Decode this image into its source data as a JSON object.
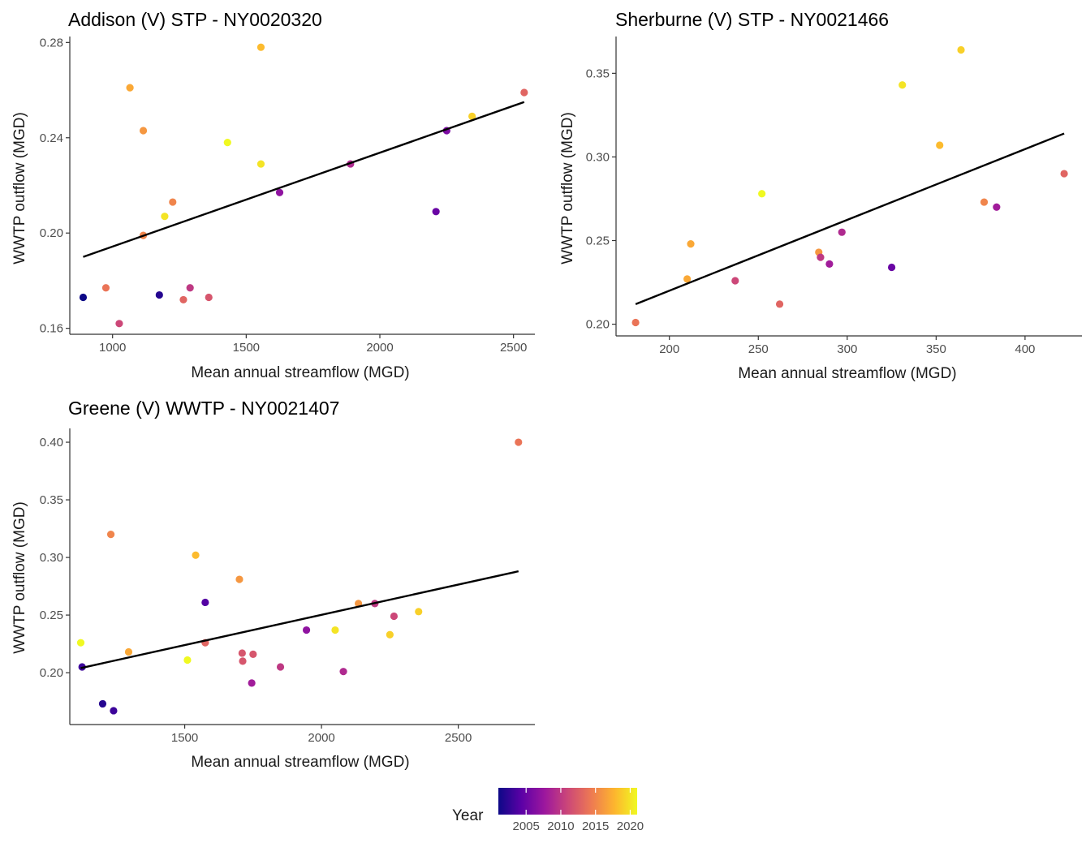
{
  "chart_data": [
    {
      "type": "scatter",
      "title": "Addison (V) STP - NY0020320",
      "xlabel": "Mean annual streamflow (MGD)",
      "ylabel": "WWTP outflow (MGD)",
      "xlim": [
        840,
        2580
      ],
      "ylim": [
        0.1575,
        0.2825
      ],
      "xticks": [
        1000,
        1500,
        2000,
        2500
      ],
      "xtick_labels": [
        "1000",
        "1500",
        "2000",
        "2500"
      ],
      "yticks": [
        0.16,
        0.2,
        0.24,
        0.28
      ],
      "ytick_labels": [
        "0.16",
        "0.20",
        "0.24",
        "0.28"
      ],
      "grid": false,
      "points": [
        {
          "x": 890,
          "y": 0.173,
          "year": 2001
        },
        {
          "x": 975,
          "y": 0.177,
          "year": 2014
        },
        {
          "x": 1025,
          "y": 0.162,
          "year": 2011
        },
        {
          "x": 1065,
          "y": 0.261,
          "year": 2017
        },
        {
          "x": 1115,
          "y": 0.243,
          "year": 2016
        },
        {
          "x": 1115,
          "y": 0.199,
          "year": 2015
        },
        {
          "x": 1175,
          "y": 0.174,
          "year": 2002
        },
        {
          "x": 1195,
          "y": 0.207,
          "year": 2020
        },
        {
          "x": 1225,
          "y": 0.213,
          "year": 2015
        },
        {
          "x": 1265,
          "y": 0.172,
          "year": 2013
        },
        {
          "x": 1290,
          "y": 0.177,
          "year": 2010
        },
        {
          "x": 1360,
          "y": 0.173,
          "year": 2012
        },
        {
          "x": 1430,
          "y": 0.238,
          "year": 2021
        },
        {
          "x": 1555,
          "y": 0.229,
          "year": 2020
        },
        {
          "x": 1555,
          "y": 0.278,
          "year": 2018
        },
        {
          "x": 1625,
          "y": 0.217,
          "year": 2007
        },
        {
          "x": 1890,
          "y": 0.229,
          "year": 2009
        },
        {
          "x": 2210,
          "y": 0.209,
          "year": 2005
        },
        {
          "x": 2250,
          "y": 0.243,
          "year": 2006
        },
        {
          "x": 2345,
          "y": 0.249,
          "year": 2019
        },
        {
          "x": 2540,
          "y": 0.259,
          "year": 2013
        }
      ],
      "trend_line": {
        "x": [
          890,
          2540
        ],
        "y": [
          0.19,
          0.255
        ]
      }
    },
    {
      "type": "scatter",
      "title": "Sherburne (V) STP - NY0021466",
      "xlabel": "Mean annual streamflow (MGD)",
      "ylabel": "WWTP outflow (MGD)",
      "xlim": [
        170,
        432
      ],
      "ylim": [
        0.193,
        0.372
      ],
      "xticks": [
        200,
        250,
        300,
        350,
        400
      ],
      "xtick_labels": [
        "200",
        "250",
        "300",
        "350",
        "400"
      ],
      "yticks": [
        0.2,
        0.25,
        0.3,
        0.35
      ],
      "ytick_labels": [
        "0.20",
        "0.25",
        "0.30",
        "0.35"
      ],
      "grid": false,
      "points": [
        {
          "x": 181,
          "y": 0.201,
          "year": 2014
        },
        {
          "x": 210,
          "y": 0.227,
          "year": 2017
        },
        {
          "x": 212,
          "y": 0.248,
          "year": 2017
        },
        {
          "x": 237,
          "y": 0.226,
          "year": 2011
        },
        {
          "x": 252,
          "y": 0.278,
          "year": 2021
        },
        {
          "x": 262,
          "y": 0.212,
          "year": 2013
        },
        {
          "x": 284,
          "y": 0.243,
          "year": 2016
        },
        {
          "x": 285,
          "y": 0.24,
          "year": 2010
        },
        {
          "x": 290,
          "y": 0.236,
          "year": 2008
        },
        {
          "x": 297,
          "y": 0.255,
          "year": 2009
        },
        {
          "x": 325,
          "y": 0.234,
          "year": 2005
        },
        {
          "x": 331,
          "y": 0.343,
          "year": 2020
        },
        {
          "x": 352,
          "y": 0.307,
          "year": 2018
        },
        {
          "x": 364,
          "y": 0.364,
          "year": 2019
        },
        {
          "x": 377,
          "y": 0.273,
          "year": 2015
        },
        {
          "x": 384,
          "y": 0.27,
          "year": 2008
        },
        {
          "x": 422,
          "y": 0.29,
          "year": 2013
        }
      ],
      "trend_line": {
        "x": [
          181,
          422
        ],
        "y": [
          0.212,
          0.314
        ]
      }
    },
    {
      "type": "scatter",
      "title": "Greene (V) WWTP - NY0021407",
      "xlabel": "Mean annual streamflow (MGD)",
      "ylabel": "WWTP outflow (MGD)",
      "xlim": [
        1080,
        2780
      ],
      "ylim": [
        0.155,
        0.412
      ],
      "xticks": [
        1500,
        2000,
        2500
      ],
      "xtick_labels": [
        "1500",
        "2000",
        "2500"
      ],
      "yticks": [
        0.2,
        0.25,
        0.3,
        0.35,
        0.4
      ],
      "ytick_labels": [
        "0.20",
        "0.25",
        "0.30",
        "0.35",
        "0.40"
      ],
      "grid": false,
      "points": [
        {
          "x": 1120,
          "y": 0.226,
          "year": 2021
        },
        {
          "x": 1125,
          "y": 0.205,
          "year": 2003
        },
        {
          "x": 1200,
          "y": 0.173,
          "year": 2002
        },
        {
          "x": 1230,
          "y": 0.32,
          "year": 2015
        },
        {
          "x": 1240,
          "y": 0.167,
          "year": 2003
        },
        {
          "x": 1295,
          "y": 0.218,
          "year": 2017
        },
        {
          "x": 1510,
          "y": 0.211,
          "year": 2021
        },
        {
          "x": 1540,
          "y": 0.302,
          "year": 2018
        },
        {
          "x": 1575,
          "y": 0.261,
          "year": 2004
        },
        {
          "x": 1575,
          "y": 0.226,
          "year": 2013
        },
        {
          "x": 1700,
          "y": 0.281,
          "year": 2016
        },
        {
          "x": 1710,
          "y": 0.217,
          "year": 2012
        },
        {
          "x": 1712,
          "y": 0.21,
          "year": 2012
        },
        {
          "x": 1745,
          "y": 0.191,
          "year": 2008
        },
        {
          "x": 1750,
          "y": 0.216,
          "year": 2012
        },
        {
          "x": 1850,
          "y": 0.205,
          "year": 2010
        },
        {
          "x": 1945,
          "y": 0.237,
          "year": 2007
        },
        {
          "x": 2050,
          "y": 0.237,
          "year": 2020
        },
        {
          "x": 2080,
          "y": 0.201,
          "year": 2009
        },
        {
          "x": 2135,
          "y": 0.26,
          "year": 2016
        },
        {
          "x": 2195,
          "y": 0.26,
          "year": 2010
        },
        {
          "x": 2250,
          "y": 0.233,
          "year": 2019
        },
        {
          "x": 2265,
          "y": 0.249,
          "year": 2011
        },
        {
          "x": 2355,
          "y": 0.253,
          "year": 2019
        },
        {
          "x": 2720,
          "y": 0.4,
          "year": 2014
        }
      ],
      "trend_line": {
        "x": [
          1120,
          2720
        ],
        "y": [
          0.204,
          0.288
        ]
      }
    }
  ],
  "legend": {
    "title": "Year",
    "range": [
      2001,
      2021
    ],
    "ticks": [
      2005,
      2010,
      2015,
      2020
    ],
    "tick_labels": [
      "2005",
      "2010",
      "2015",
      "2020"
    ],
    "colormap": "plasma",
    "colors": [
      "#0d0887",
      "#5c01a6",
      "#9c179e",
      "#cc4778",
      "#ed7953",
      "#fdb42f",
      "#f0f921"
    ],
    "placement": "bottom-center"
  },
  "colors": {
    "trend_line": "#000000",
    "axis": "#333333",
    "background": "#ffffff"
  }
}
